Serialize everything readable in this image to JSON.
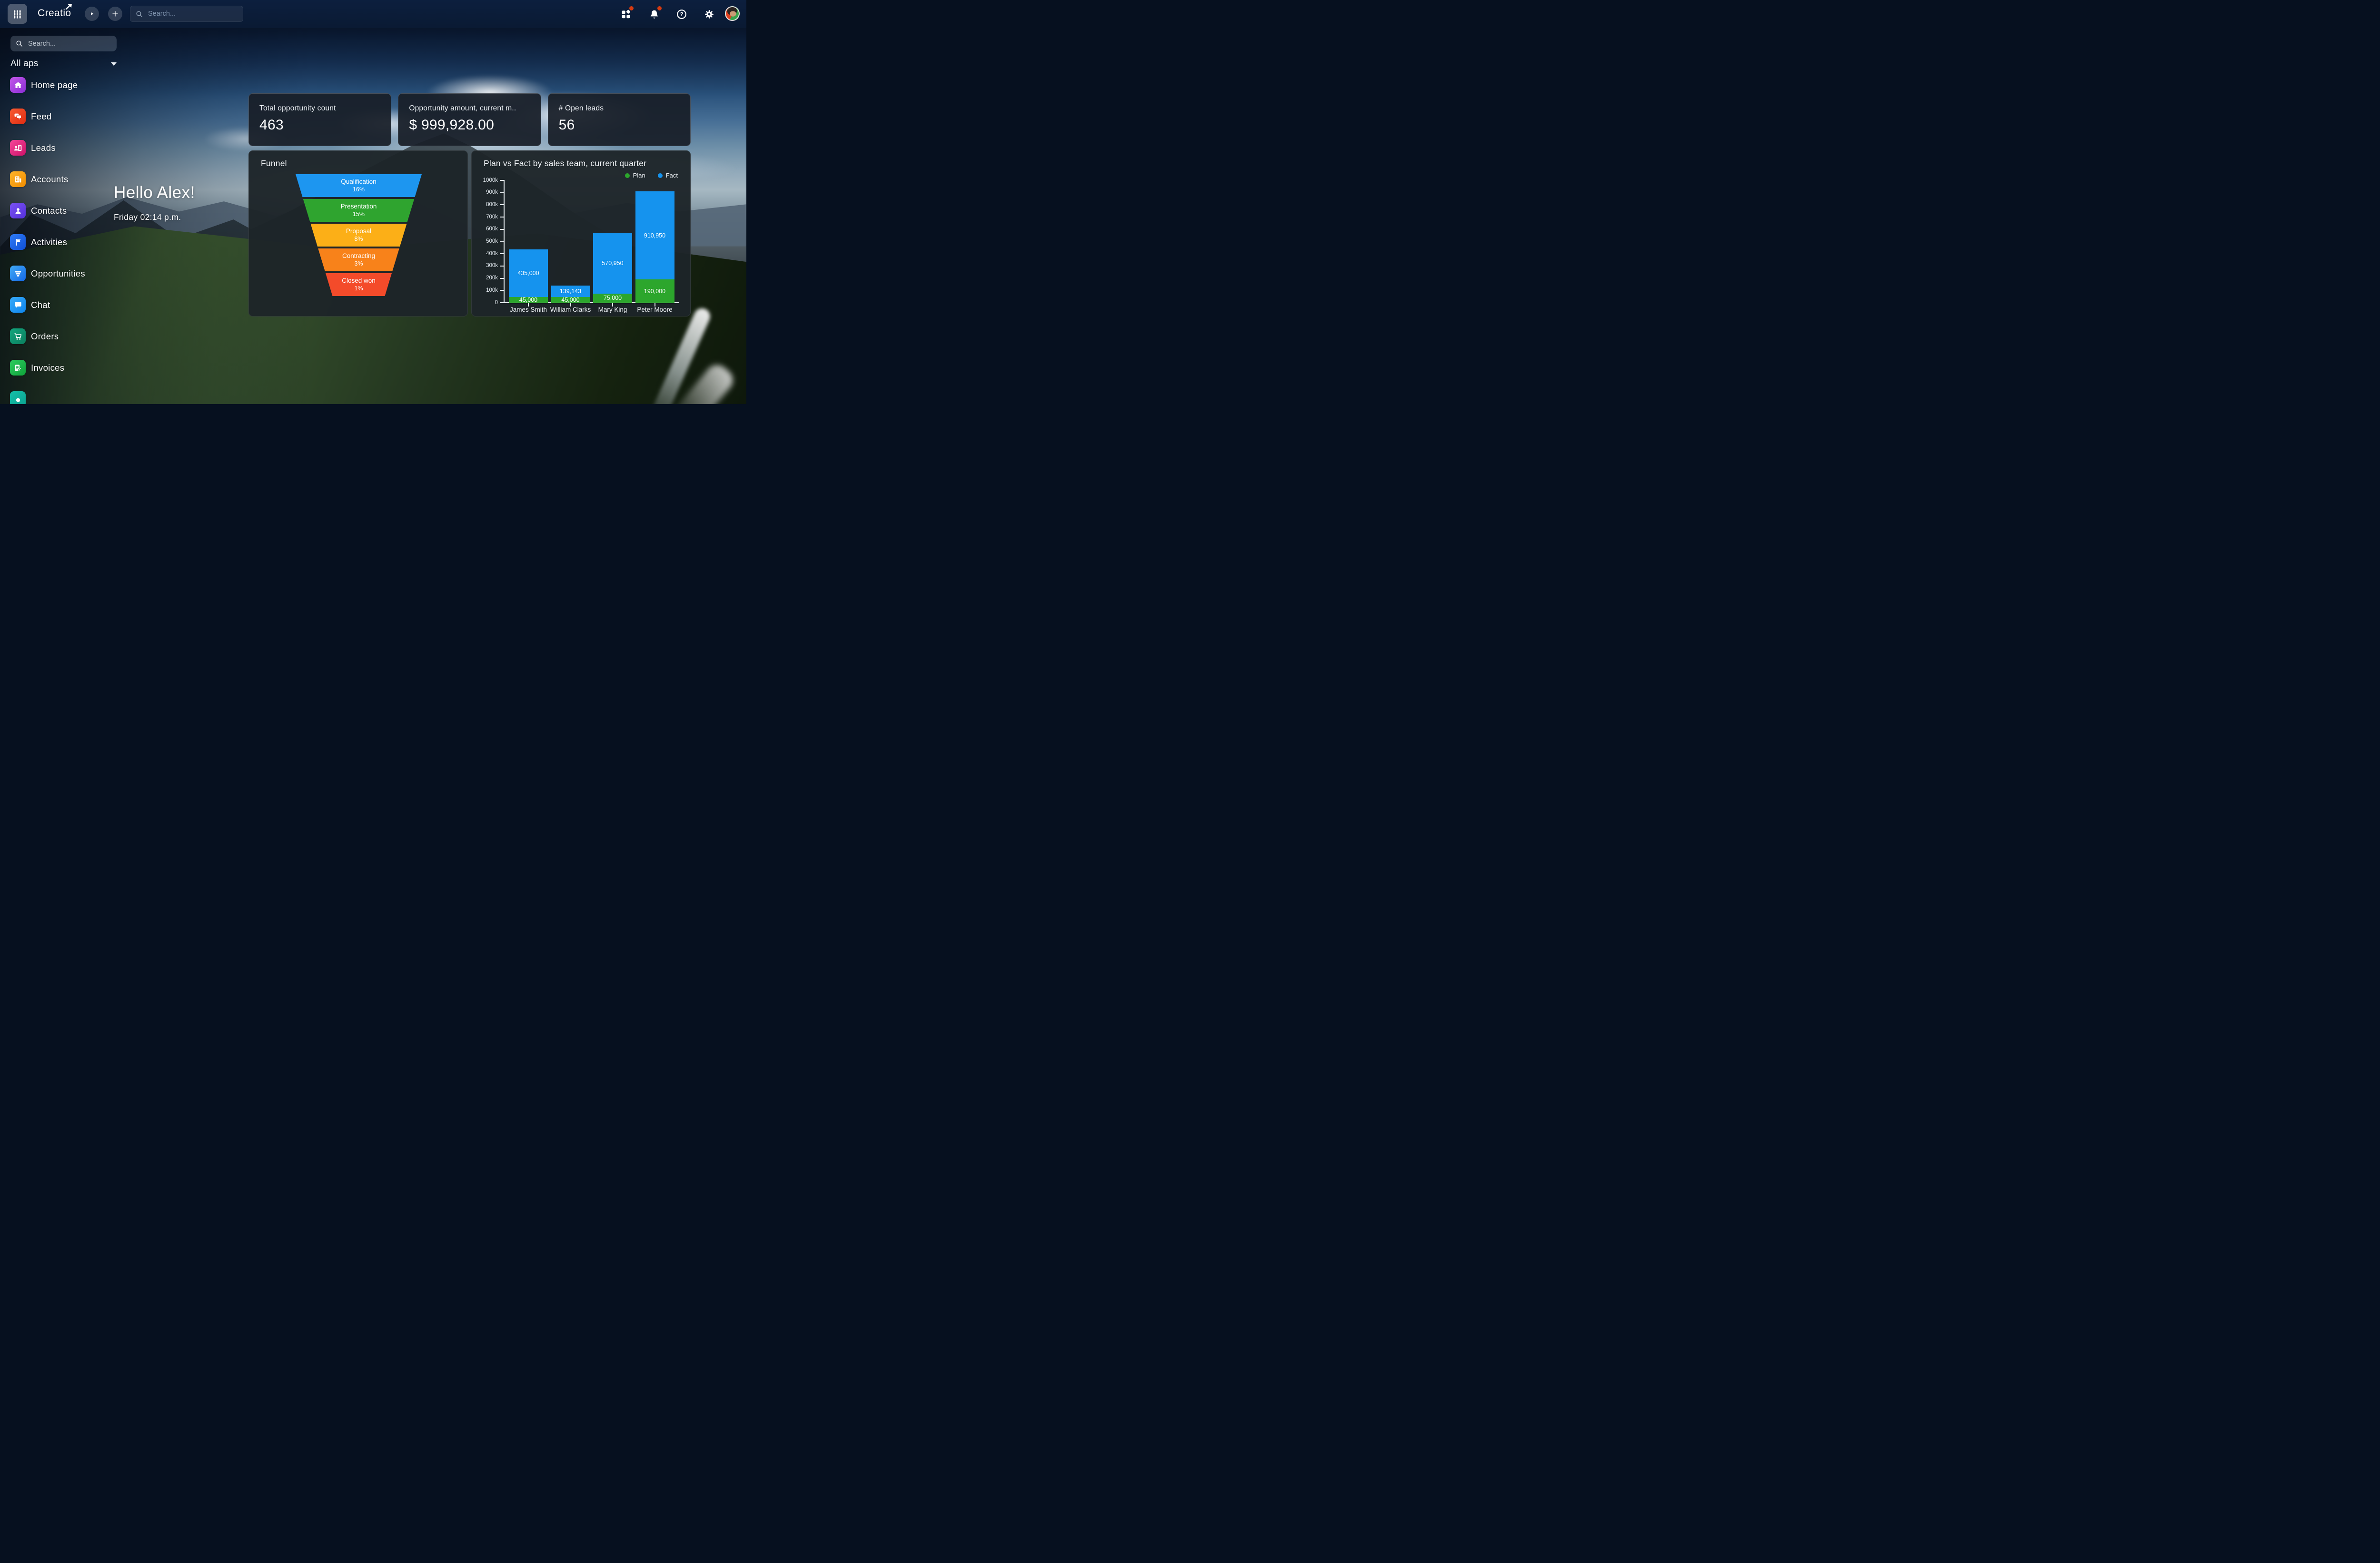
{
  "colors": {
    "accent_red_badge": "#d63a10",
    "plan_green": "#2ca62c",
    "fact_blue": "#1593ee"
  },
  "topbar": {
    "logo": "Creatio",
    "search_placeholder": "Search...",
    "apps_badge_visible": true,
    "notifications_badge_visible": true
  },
  "sidebar": {
    "search_placeholder": "Search...",
    "workspace_selector_label": "All aps",
    "items": [
      {
        "label": "Home page",
        "icon": "home"
      },
      {
        "label": "Feed",
        "icon": "feed"
      },
      {
        "label": "Leads",
        "icon": "leads"
      },
      {
        "label": "Accounts",
        "icon": "accounts"
      },
      {
        "label": "Contacts",
        "icon": "contacts"
      },
      {
        "label": "Activities",
        "icon": "activities"
      },
      {
        "label": "Opportunities",
        "icon": "opportunities"
      },
      {
        "label": "Chat",
        "icon": "chat"
      },
      {
        "label": "Orders",
        "icon": "orders"
      },
      {
        "label": "Invoices",
        "icon": "invoices"
      },
      {
        "label": "",
        "icon": "partial"
      }
    ]
  },
  "greeting": {
    "title": "Hello Alex!",
    "subtitle": "Friday 02:14 p.m."
  },
  "kpis": [
    {
      "label": "Total opportunity count",
      "value": "463"
    },
    {
      "label": "Opportunity amount, current m..",
      "value": "$ 999,928.00"
    },
    {
      "label": "# Open leads",
      "value": "56"
    }
  ],
  "chart_data": [
    {
      "type": "funnel",
      "title": "Funnel",
      "categories": [
        "Qualification",
        "Presentation",
        "Proposal",
        "Contracting",
        "Closed won"
      ],
      "values": [
        16,
        15,
        8,
        3,
        1
      ],
      "value_labels": [
        "16%",
        "15%",
        "8%",
        "3%",
        "1%"
      ],
      "colors": [
        "#1d96f0",
        "#2fa42f",
        "#fcaf17",
        "#f8821a",
        "#f44b2a"
      ]
    },
    {
      "type": "bar",
      "stacked": true,
      "title": "Plan vs Fact by sales team, current quarter",
      "categories": [
        "James Smith",
        "William Clarks",
        "Mary King",
        "Peter Moore"
      ],
      "series": [
        {
          "name": "Plan",
          "color": "#2ca62c",
          "values": [
            45000,
            45000,
            75000,
            190000
          ],
          "labels": [
            "45,000",
            "45,000",
            "75,000",
            "190,000"
          ]
        },
        {
          "name": "Fact",
          "color": "#1593ee",
          "values": [
            435000,
            139143,
            570950,
            910950
          ],
          "labels": [
            "435,000",
            "139,143",
            "570,950",
            "910,950"
          ]
        }
      ],
      "bar_total_equals": "Fact",
      "ylim": [
        0,
        1000000
      ],
      "yticks": [
        "0",
        "100k",
        "200k",
        "300k",
        "400k",
        "500k",
        "600k",
        "700k",
        "800k",
        "900k",
        "1000k"
      ],
      "legend_position": "top-right",
      "grid": false,
      "xlabel": "",
      "ylabel": ""
    }
  ]
}
